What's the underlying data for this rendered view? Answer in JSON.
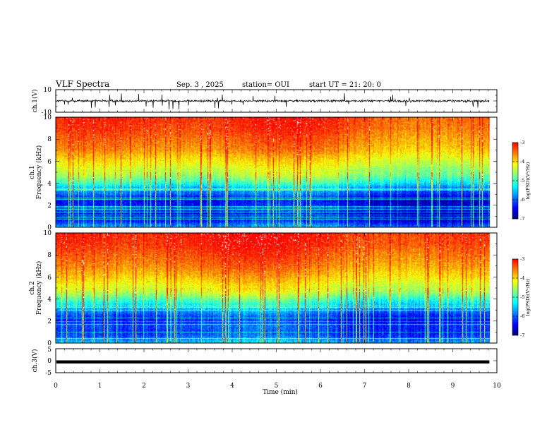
{
  "header": {
    "title": "VLF Spectra",
    "date": "Sep. 3 , 2025",
    "station": "station= OUI",
    "start": "start UT = 21: 20: 0"
  },
  "colors": {
    "colormap": [
      "#00007f",
      "#0000ff",
      "#007fff",
      "#00ffff",
      "#7fff7f",
      "#ffff00",
      "#ff7f00",
      "#ff0000",
      "#ffffff"
    ],
    "waveform": "#000000"
  },
  "chart_data": [
    {
      "type": "line",
      "name": "ch1-waveform",
      "ylabel": "ch.1(V)",
      "ylim": [
        -10,
        10
      ],
      "yticks": [
        "10",
        "-10"
      ],
      "baseline": 0,
      "noise_amplitude": 1,
      "spike_amplitude": 5,
      "xlim": [
        0,
        10
      ],
      "data_end": 9.83
    },
    {
      "type": "heatmap",
      "name": "ch1-spectrogram",
      "ylabel": "ch.1 Frequency (kHz)",
      "ylabel_ch": "ch.1",
      "ylabel_freq": "Frequency (kHz)",
      "ylim": [
        0,
        10
      ],
      "yticks": [
        "0",
        "2",
        "4",
        "6",
        "8",
        "10"
      ],
      "xlim": [
        0,
        10
      ],
      "data_end": 9.83,
      "colorbar": {
        "label": "log(PSD)(V²/Hz)",
        "range": [
          -7,
          -3
        ],
        "ticks": [
          "-3",
          "-4",
          "-5",
          "-6",
          "-7"
        ]
      },
      "profile_khz": [
        0,
        0.5,
        1,
        1.5,
        2,
        2.5,
        3,
        3.5,
        4,
        4.5,
        5,
        6,
        7,
        8,
        9,
        10
      ],
      "profile_log_psd": [
        -6,
        -6.6,
        -6.9,
        -6.5,
        -6.7,
        -6.8,
        -6.3,
        -6.0,
        -5.4,
        -5.0,
        -4.7,
        -4.3,
        -3.9,
        -3.7,
        -3.5,
        -3.4
      ]
    },
    {
      "type": "heatmap",
      "name": "ch2-spectrogram",
      "ylabel": "ch.2 Frequency (kHz)",
      "ylabel_ch": "ch.2",
      "ylabel_freq": "Frequency (kHz)",
      "ylim": [
        0,
        10
      ],
      "yticks": [
        "0",
        "2",
        "4",
        "6",
        "8",
        "10"
      ],
      "xlim": [
        0,
        10
      ],
      "data_end": 9.83,
      "colorbar": {
        "label": "log(PSD)(V²/Hz)",
        "range": [
          -7,
          -3
        ],
        "ticks": [
          "-3",
          "-4",
          "-5",
          "-6",
          "-7"
        ]
      },
      "profile_khz": [
        0,
        0.5,
        1,
        1.5,
        2,
        2.5,
        3,
        3.5,
        4,
        4.5,
        5,
        6,
        7,
        8,
        9,
        10
      ],
      "profile_log_psd": [
        -5.8,
        -6.3,
        -6.5,
        -6.4,
        -6.6,
        -6.4,
        -6.0,
        -5.6,
        -5.2,
        -4.8,
        -4.5,
        -4.1,
        -3.8,
        -3.6,
        -3.4,
        -3.3
      ]
    },
    {
      "type": "line",
      "name": "ch3-waveform",
      "ylabel": "ch.3(V)",
      "ylim": [
        -5,
        5
      ],
      "yticks": [
        "5",
        "0",
        "-5"
      ],
      "baseline": -0.5,
      "xlim": [
        0,
        10
      ],
      "xticks": [
        "0",
        "1",
        "2",
        "3",
        "4",
        "5",
        "6",
        "7",
        "8",
        "9",
        "10"
      ],
      "xlabel": "Time (min)",
      "data_end": 9.83
    }
  ]
}
